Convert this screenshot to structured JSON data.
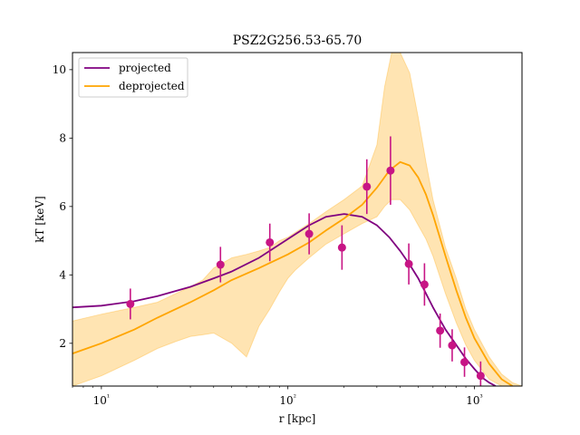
{
  "chart_data": {
    "type": "line",
    "title": "PSZ2G256.53-65.70",
    "xlabel": "r [kpc]",
    "ylabel": "kT [keV]",
    "xscale": "log",
    "xlim": [
      7,
      1800
    ],
    "ylim": [
      0.75,
      10.5
    ],
    "grid": false,
    "legend_position": "top-left",
    "x_ticks": [
      {
        "value": 10,
        "label": "10¹"
      },
      {
        "value": 100,
        "label": "10²"
      },
      {
        "value": 1000,
        "label": "10³"
      }
    ],
    "y_ticks": [
      2,
      4,
      6,
      8,
      10
    ],
    "series": [
      {
        "name": "projected",
        "color": "#800080",
        "x": [
          7,
          10,
          15,
          20,
          30,
          40,
          50,
          70,
          100,
          130,
          160,
          200,
          250,
          300,
          350,
          400,
          450,
          500,
          600,
          700,
          800,
          900,
          1000,
          1100,
          1200,
          1300
        ],
        "y": [
          3.05,
          3.1,
          3.23,
          3.38,
          3.65,
          3.9,
          4.1,
          4.5,
          5.05,
          5.45,
          5.7,
          5.78,
          5.7,
          5.45,
          5.1,
          4.7,
          4.3,
          3.9,
          3.05,
          2.4,
          1.95,
          1.55,
          1.25,
          1.0,
          0.85,
          0.75
        ]
      },
      {
        "name": "deprojected",
        "color": "#ffa500",
        "x": [
          7,
          10,
          15,
          20,
          30,
          40,
          50,
          70,
          100,
          130,
          160,
          200,
          250,
          300,
          350,
          400,
          450,
          500,
          550,
          600,
          700,
          800,
          900,
          1000,
          1200,
          1400,
          1600
        ],
        "y": [
          1.7,
          2.0,
          2.4,
          2.75,
          3.2,
          3.55,
          3.85,
          4.2,
          4.6,
          4.95,
          5.3,
          5.65,
          6.05,
          6.55,
          7.05,
          7.3,
          7.2,
          6.85,
          6.35,
          5.75,
          4.55,
          3.55,
          2.75,
          2.15,
          1.4,
          0.95,
          0.75
        ]
      },
      {
        "name": "",
        "kind": "band",
        "color": "#ffa500",
        "x": [
          7,
          10,
          15,
          20,
          25,
          30,
          35,
          40,
          50,
          60,
          70,
          80,
          90,
          100,
          110,
          130,
          160,
          200,
          250,
          300,
          330,
          360,
          400,
          450,
          500,
          550,
          600,
          700,
          800,
          900,
          1000,
          1200,
          1400,
          1600,
          1800
        ],
        "upper": [
          2.65,
          2.85,
          3.05,
          3.2,
          3.45,
          3.65,
          3.85,
          4.2,
          4.5,
          4.6,
          4.7,
          4.8,
          5.0,
          5.1,
          5.25,
          5.5,
          5.85,
          6.2,
          6.6,
          7.8,
          9.5,
          10.5,
          10.5,
          9.9,
          8.6,
          7.3,
          6.2,
          4.8,
          3.9,
          3.0,
          2.4,
          1.6,
          1.1,
          0.85,
          0.75
        ],
        "lower": [
          0.75,
          1.05,
          1.5,
          1.85,
          2.05,
          2.2,
          2.25,
          2.3,
          2.0,
          1.6,
          2.5,
          3.0,
          3.5,
          3.9,
          4.15,
          4.5,
          4.9,
          5.2,
          5.5,
          5.7,
          6.0,
          6.2,
          6.2,
          5.9,
          5.45,
          5.05,
          4.55,
          3.45,
          2.6,
          1.95,
          1.5,
          0.95,
          0.75,
          0.75,
          0.75
        ]
      },
      {
        "name": "",
        "kind": "errorbar",
        "color": "#c71585",
        "x": [
          14.3,
          43.5,
          80,
          130,
          195,
          265,
          355,
          445,
          540,
          655,
          760,
          885,
          1080
        ],
        "y": [
          3.15,
          4.3,
          4.95,
          5.2,
          4.8,
          6.58,
          7.05,
          4.32,
          3.72,
          2.37,
          1.94,
          1.45,
          1.05
        ],
        "yerr": [
          0.45,
          0.52,
          0.55,
          0.6,
          0.65,
          0.8,
          1.0,
          0.6,
          0.62,
          0.5,
          0.47,
          0.43,
          0.42
        ]
      }
    ]
  }
}
